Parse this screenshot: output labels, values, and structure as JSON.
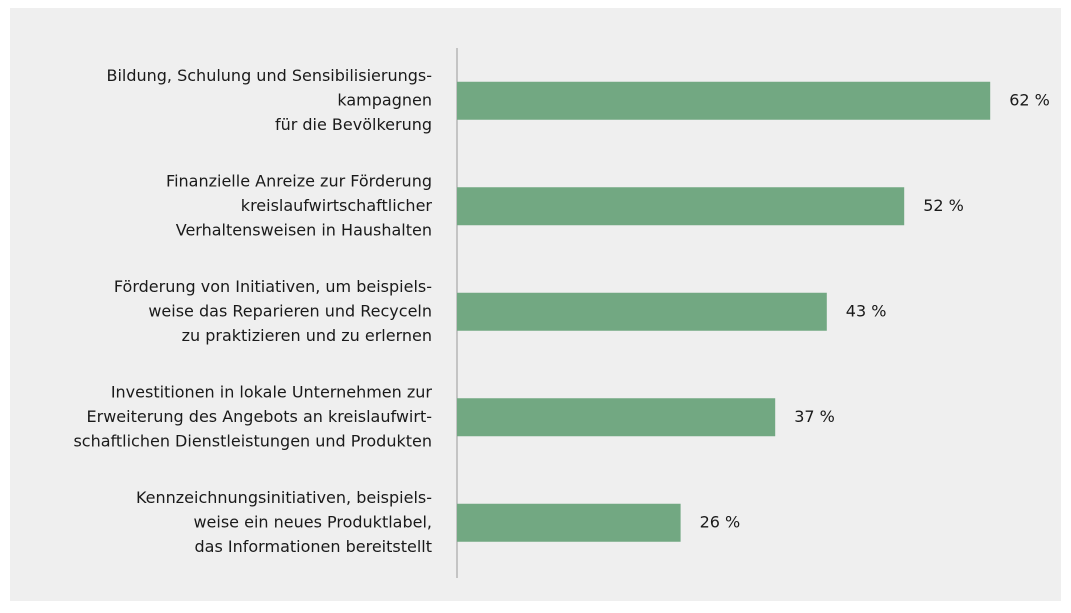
{
  "chart_data": {
    "type": "barh",
    "categories": [
      [
        "Bildung, Schulung und Sensibilisierungs-",
        "kampagnen",
        "für die Bevölkerung"
      ],
      [
        "Finanzielle Anreize zur Förderung",
        "kreislaufwirtschaftlicher",
        "Verhaltensweisen in Haushalten"
      ],
      [
        "Förderung von Initiativen, um beispiels-",
        "weise das Reparieren und Recyceln",
        "zu praktizieren und zu erlernen"
      ],
      [
        "Investitionen in lokale Unternehmen zur",
        "Erweiterung des Angebots an kreislaufwirt-",
        "schaftlichen Dienstleistungen und Produkten"
      ],
      [
        "Kennzeichnungsinitiativen, beispiels-",
        "weise ein neues Produktlabel,",
        "das Informationen bereitstellt"
      ]
    ],
    "values": [
      62,
      52,
      43,
      37,
      26
    ],
    "value_labels": [
      "62 %",
      "52 %",
      "43 %",
      "37 %",
      "26 %"
    ],
    "color": "#72a882"
  }
}
